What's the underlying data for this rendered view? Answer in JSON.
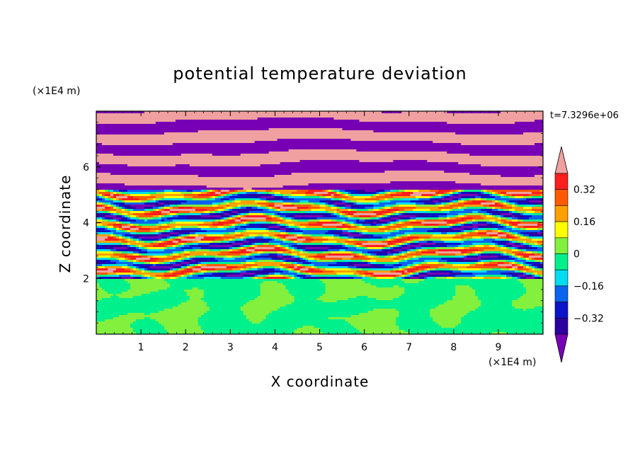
{
  "chart_data": {
    "type": "heatmap",
    "title": "potential temperature deviation",
    "xlabel": "X coordinate",
    "ylabel": "Z coordinate",
    "x_unit": "(×1E4 m)",
    "y_unit": "(×1E4 m)",
    "time_label": "t=7.3296e+06",
    "xlim": [
      0,
      10
    ],
    "ylim": [
      0,
      8
    ],
    "x_ticks": [
      "1",
      "2",
      "3",
      "4",
      "5",
      "6",
      "7",
      "8",
      "9"
    ],
    "y_ticks": [
      "2",
      "4",
      "6"
    ],
    "colorbar": {
      "labels": [
        "0.32",
        "0.16",
        "0",
        "−0.16",
        "−0.32"
      ],
      "label_values": [
        0.32,
        0.16,
        0,
        -0.16,
        -0.32
      ],
      "levels": [
        -0.4,
        -0.32,
        -0.24,
        -0.16,
        -0.08,
        0,
        0.08,
        0.16,
        0.24,
        0.32,
        0.4
      ],
      "colors": [
        "#7800b4",
        "#2a00a0",
        "#0a14c8",
        "#0a64f0",
        "#00dcf0",
        "#00f08c",
        "#82f03c",
        "#ffff00",
        "#ffa000",
        "#ff5a00",
        "#ff1e1e",
        "#f0a0a0"
      ]
    },
    "field_description_layers": [
      {
        "z_range": [
          0,
          2
        ],
        "pattern": "near-zero mix",
        "values": [
          -0.04,
          0.04
        ]
      },
      {
        "z_range": [
          2,
          5.2
        ],
        "pattern": "turbulent bands",
        "values": [
          -0.4,
          0.4
        ]
      },
      {
        "z_range": [
          5.2,
          8
        ],
        "pattern": "alternating stripes",
        "values": [
          -0.4,
          0.4
        ]
      }
    ]
  }
}
